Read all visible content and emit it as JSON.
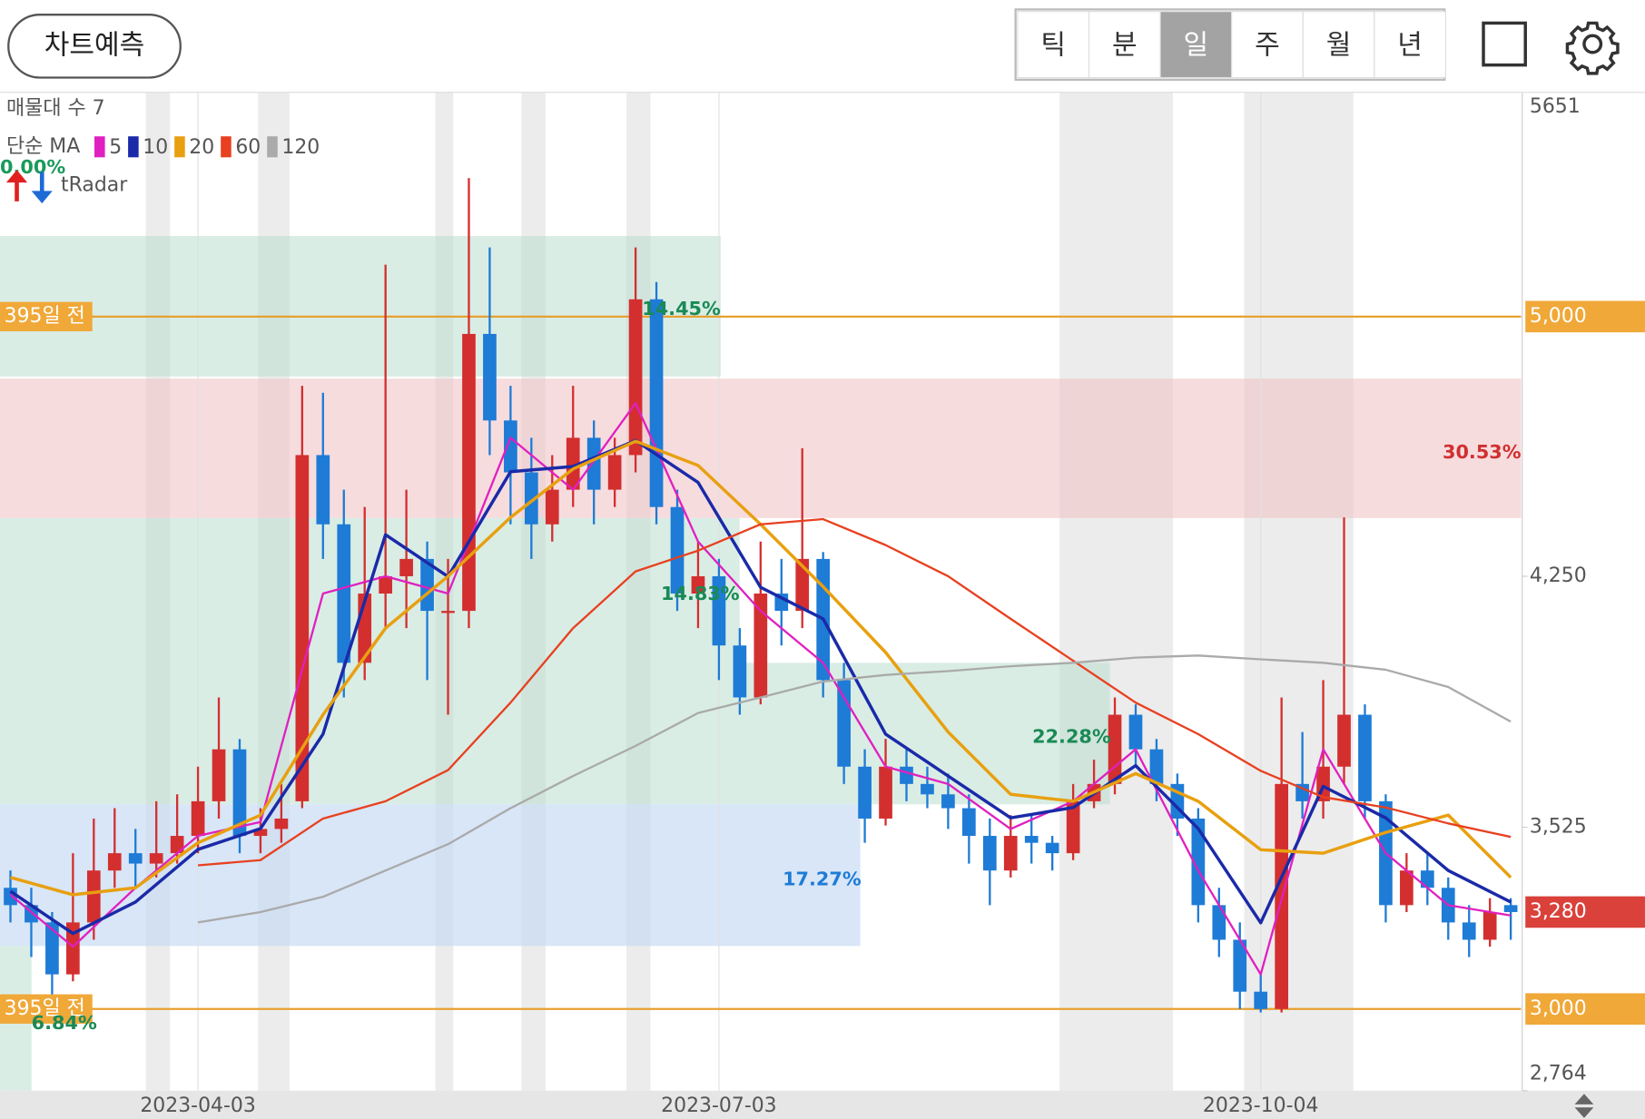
{
  "header": {
    "button": "차트예측",
    "tabs": [
      "틱",
      "분",
      "일",
      "주",
      "월",
      "년"
    ],
    "selected_tab": 2
  },
  "legend": {
    "volume_profile": "매물대 수 7",
    "ma_title": "단순 MA",
    "radar_pct": "0.00%",
    "radar": "tRadar"
  },
  "annotations": [
    "14.45%",
    "30.53%",
    "14.83%",
    "22.28%",
    "17.27%",
    "6.84%"
  ],
  "chart_data": {
    "type": "candlestick",
    "categories": [
      null,
      null,
      null,
      null,
      null,
      null,
      null,
      null,
      null,
      "2023-04-03",
      null,
      null,
      null,
      null,
      null,
      null,
      null,
      null,
      null,
      null,
      null,
      null,
      null,
      null,
      null,
      null,
      null,
      null,
      null,
      null,
      null,
      null,
      null,
      null,
      "2023-07-03",
      null,
      null,
      null,
      null,
      null,
      null,
      null,
      null,
      null,
      null,
      null,
      null,
      null,
      null,
      null,
      null,
      null,
      null,
      null,
      null,
      null,
      null,
      null,
      null,
      null,
      "2023-10-04",
      null,
      null,
      null,
      null,
      null,
      null,
      null,
      null,
      null,
      null,
      null,
      null
    ],
    "candles": [
      [
        3350,
        3400,
        3250,
        3300
      ],
      [
        3300,
        3350,
        3150,
        3250
      ],
      [
        3250,
        3280,
        3000,
        3100
      ],
      [
        3100,
        3450,
        3080,
        3250
      ],
      [
        3250,
        3550,
        3200,
        3400
      ],
      [
        3400,
        3580,
        3350,
        3450
      ],
      [
        3450,
        3520,
        3350,
        3420
      ],
      [
        3420,
        3600,
        3380,
        3450
      ],
      [
        3450,
        3620,
        3420,
        3500
      ],
      [
        3500,
        3700,
        3450,
        3600
      ],
      [
        3600,
        3900,
        3550,
        3750
      ],
      [
        3750,
        3780,
        3450,
        3500
      ],
      [
        3500,
        3580,
        3450,
        3520
      ],
      [
        3520,
        3650,
        3480,
        3550
      ],
      [
        3600,
        4800,
        3580,
        4600
      ],
      [
        4600,
        4780,
        4300,
        4400
      ],
      [
        4400,
        4500,
        3900,
        4000
      ],
      [
        4000,
        4450,
        3950,
        4200
      ],
      [
        4200,
        5150,
        4100,
        4250
      ],
      [
        4250,
        4500,
        4100,
        4300
      ],
      [
        4300,
        4350,
        3950,
        4150
      ],
      [
        4150,
        4300,
        3850,
        4150
      ],
      [
        4150,
        5400,
        4100,
        4950
      ],
      [
        4950,
        5200,
        4600,
        4700
      ],
      [
        4700,
        4800,
        4400,
        4550
      ],
      [
        4550,
        4650,
        4300,
        4400
      ],
      [
        4400,
        4600,
        4350,
        4500
      ],
      [
        4500,
        4800,
        4450,
        4650
      ],
      [
        4650,
        4700,
        4400,
        4500
      ],
      [
        4500,
        4650,
        4450,
        4600
      ],
      [
        4600,
        5200,
        4550,
        5050
      ],
      [
        5050,
        5100,
        4400,
        4450
      ],
      [
        4450,
        4500,
        4150,
        4200
      ],
      [
        4200,
        4350,
        4100,
        4250
      ],
      [
        4250,
        4300,
        3950,
        4050
      ],
      [
        4050,
        4100,
        3850,
        3900
      ],
      [
        3900,
        4350,
        3880,
        4200
      ],
      [
        4200,
        4300,
        4050,
        4150
      ],
      [
        4150,
        4620,
        4100,
        4300
      ],
      [
        4300,
        4320,
        3900,
        3950
      ],
      [
        3950,
        4000,
        3650,
        3700
      ],
      [
        3700,
        3750,
        3480,
        3550
      ],
      [
        3550,
        3780,
        3530,
        3700
      ],
      [
        3700,
        3750,
        3600,
        3650
      ],
      [
        3650,
        3700,
        3580,
        3620
      ],
      [
        3620,
        3680,
        3520,
        3580
      ],
      [
        3580,
        3620,
        3420,
        3500
      ],
      [
        3500,
        3550,
        3300,
        3400
      ],
      [
        3400,
        3560,
        3380,
        3500
      ],
      [
        3500,
        3560,
        3420,
        3480
      ],
      [
        3480,
        3500,
        3400,
        3450
      ],
      [
        3450,
        3650,
        3430,
        3600
      ],
      [
        3600,
        3720,
        3580,
        3650
      ],
      [
        3650,
        3900,
        3620,
        3850
      ],
      [
        3850,
        3880,
        3700,
        3750
      ],
      [
        3750,
        3780,
        3600,
        3650
      ],
      [
        3650,
        3680,
        3500,
        3550
      ],
      [
        3550,
        3580,
        3250,
        3300
      ],
      [
        3300,
        3350,
        3150,
        3200
      ],
      [
        3200,
        3250,
        3000,
        3050
      ],
      [
        3050,
        3100,
        2990,
        3000
      ],
      [
        3000,
        3900,
        2990,
        3650
      ],
      [
        3650,
        3800,
        3550,
        3600
      ],
      [
        3600,
        3950,
        3550,
        3700
      ],
      [
        3700,
        4420,
        3650,
        3850
      ],
      [
        3850,
        3880,
        3550,
        3600
      ],
      [
        3600,
        3620,
        3250,
        3300
      ],
      [
        3300,
        3450,
        3280,
        3400
      ],
      [
        3400,
        3450,
        3300,
        3350
      ],
      [
        3350,
        3380,
        3200,
        3250
      ],
      [
        3250,
        3300,
        3150,
        3200
      ],
      [
        3200,
        3320,
        3180,
        3280
      ],
      [
        3300,
        3320,
        3200,
        3280
      ]
    ],
    "up_color": "#d32f2f",
    "down_color": "#1e7bd6",
    "series": [
      {
        "name": "5",
        "color": "#e020c0",
        "x": [
          0,
          3,
          6,
          9,
          12,
          15,
          18,
          21,
          24,
          27,
          30,
          33,
          36,
          39,
          42,
          45,
          48,
          51,
          54,
          57,
          60,
          63,
          66,
          69,
          72
        ],
        "values": [
          3330,
          3180,
          3350,
          3500,
          3540,
          4200,
          4250,
          4200,
          4650,
          4500,
          4750,
          4350,
          4150,
          4000,
          3700,
          3650,
          3520,
          3600,
          3750,
          3400,
          3100,
          3750,
          3450,
          3300,
          3270
        ]
      },
      {
        "name": "10",
        "color": "#1a2aa8",
        "x": [
          0,
          3,
          6,
          9,
          12,
          15,
          18,
          21,
          24,
          27,
          30,
          33,
          36,
          39,
          42,
          45,
          48,
          51,
          54,
          57,
          60,
          63,
          66,
          69,
          72
        ],
        "values": [
          3340,
          3218,
          3309,
          3461,
          3521,
          3794,
          4370,
          4249,
          4552,
          4567,
          4642,
          4521,
          4218,
          4127,
          3794,
          3673,
          3552,
          3582,
          3703,
          3521,
          3249,
          3643,
          3552,
          3400,
          3309
        ]
      },
      {
        "name": "20",
        "color": "#e8a010",
        "x": [
          0,
          3,
          6,
          9,
          12,
          15,
          18,
          21,
          24,
          27,
          30,
          33,
          36,
          39,
          42,
          45,
          48,
          51,
          54,
          57,
          60,
          63,
          66,
          69,
          72
        ],
        "values": [
          3380,
          3330,
          3350,
          3480,
          3560,
          3850,
          4100,
          4250,
          4420,
          4560,
          4640,
          4570,
          4400,
          4220,
          4030,
          3800,
          3620,
          3600,
          3680,
          3600,
          3460,
          3450,
          3510,
          3560,
          3380
        ]
      },
      {
        "name": "60",
        "color": "#e84020",
        "x": [
          0,
          3,
          6,
          9,
          12,
          15,
          18,
          21,
          24,
          27,
          30,
          33,
          36,
          39,
          42,
          45,
          48,
          51,
          54,
          57,
          60,
          63,
          66,
          69,
          72
        ],
        "values": [
          null,
          null,
          null,
          3415,
          3430,
          3550,
          3600,
          3690,
          3885,
          4100,
          4264,
          4324,
          4400,
          4415,
          4340,
          4250,
          4127,
          4006,
          3885,
          3794,
          3688,
          3612,
          3582,
          3536,
          3497
        ]
      },
      {
        "name": "120",
        "color": "#aaaaaa",
        "x": [
          0,
          3,
          6,
          9,
          12,
          15,
          18,
          21,
          24,
          27,
          30,
          33,
          36,
          39,
          42,
          45,
          48,
          51,
          54,
          57,
          60,
          63,
          66,
          69,
          72
        ],
        "values": [
          null,
          null,
          null,
          3250,
          3280,
          3324,
          3400,
          3476,
          3580,
          3673,
          3760,
          3855,
          3900,
          3946,
          3965,
          3976,
          3990,
          4000,
          4015,
          4021,
          4010,
          4000,
          3980,
          3930,
          3830
        ]
      }
    ],
    "ylim": [
      2764,
      5651
    ],
    "yticks": [
      5651,
      {
        "value": 4250,
        "label": "4,250"
      },
      {
        "value": 3525,
        "label": "3,525"
      },
      {
        "value": 2764,
        "label": "2,764"
      }
    ],
    "levels": [
      {
        "value": 5000,
        "label": "5,000",
        "note": "395일 전"
      },
      {
        "value": 3000,
        "label": "3,000",
        "note": "395일 전"
      }
    ],
    "last": {
      "value": 3280,
      "label": "3,280"
    }
  }
}
